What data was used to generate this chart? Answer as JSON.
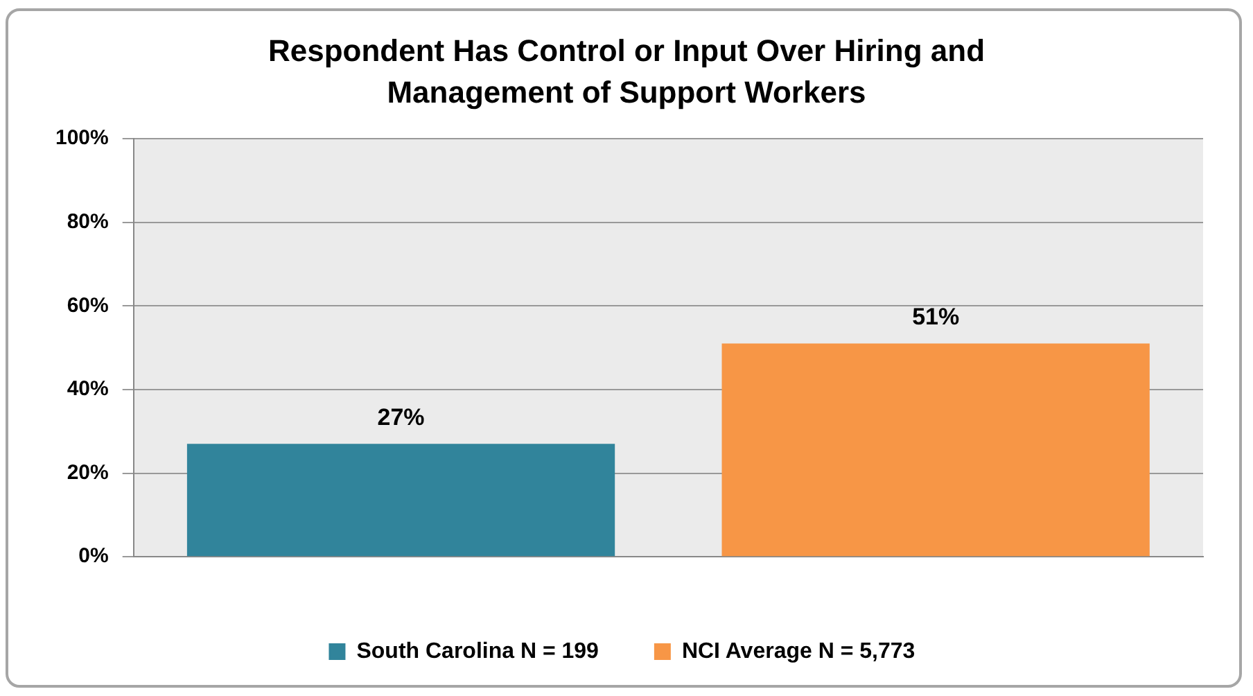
{
  "chart_data": {
    "type": "bar",
    "title": "Respondent Has Control or Input Over Hiring and Management of Support Workers",
    "categories": [
      null,
      null
    ],
    "series": [
      {
        "name": "South Carolina N = 199",
        "color": "#31849b",
        "values": [
          27,
          null
        ],
        "value_labels": [
          "27%",
          null
        ]
      },
      {
        "name": "NCI Average N = 5,773",
        "color": "#f79646",
        "values": [
          null,
          51
        ],
        "value_labels": [
          null,
          "51%"
        ]
      }
    ],
    "ylim": [
      0,
      100
    ],
    "yticks": [
      {
        "value": 0,
        "label": "0%"
      },
      {
        "value": 20,
        "label": "20%"
      },
      {
        "value": 40,
        "label": "40%"
      },
      {
        "value": 60,
        "label": "60%"
      },
      {
        "value": 80,
        "label": "80%"
      },
      {
        "value": 100,
        "label": "100%"
      }
    ],
    "grid": "y",
    "legend": "bottom"
  }
}
